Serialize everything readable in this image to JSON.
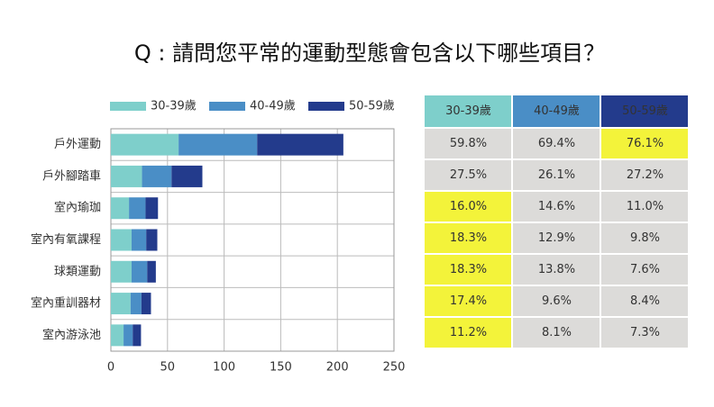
{
  "chart_data": {
    "type": "stacked-barh",
    "title": "Q : 請問您平常的運動型態會包含以下哪些項目？",
    "categories": [
      "戶外運動",
      "戶外腳踏車",
      "室內瑜珈",
      "室內有氧課程",
      "球類運動",
      "室內重訓器材",
      "室內游泳池"
    ],
    "series": [
      {
        "name": "30-39歲",
        "color": "#7ecfcb",
        "values": [
          59.8,
          27.5,
          16.0,
          18.3,
          18.3,
          17.4,
          11.2
        ],
        "value_labels": [
          "59.8%",
          "27.5%",
          "16.0%",
          "18.3%",
          "18.3%",
          "17.4%",
          "11.2%"
        ],
        "highlighted": [
          false,
          false,
          true,
          true,
          true,
          true,
          true
        ]
      },
      {
        "name": "40-49歲",
        "color": "#4a8ec6",
        "values": [
          69.4,
          26.1,
          14.6,
          12.9,
          13.8,
          9.6,
          8.1
        ],
        "value_labels": [
          "69.4%",
          "26.1%",
          "14.6%",
          "12.9%",
          "13.8%",
          "9.6%",
          "8.1%"
        ],
        "highlighted": [
          false,
          false,
          false,
          false,
          false,
          false,
          false
        ]
      },
      {
        "name": "50-59歲",
        "color": "#233b8c",
        "values": [
          76.1,
          27.2,
          11.0,
          9.8,
          7.6,
          8.4,
          7.3
        ],
        "value_labels": [
          "76.1%",
          "27.2%",
          "11.0%",
          "9.8%",
          "7.6%",
          "8.4%",
          "7.3%"
        ],
        "highlighted": [
          true,
          false,
          false,
          false,
          false,
          false,
          false
        ]
      }
    ],
    "xlim": [
      0,
      250
    ],
    "xticks": [
      0,
      50,
      100,
      150,
      200,
      250
    ],
    "grid": true,
    "legend": "top",
    "cell_color": "#dcdbd9",
    "highlight_color": "#f3f33a"
  }
}
